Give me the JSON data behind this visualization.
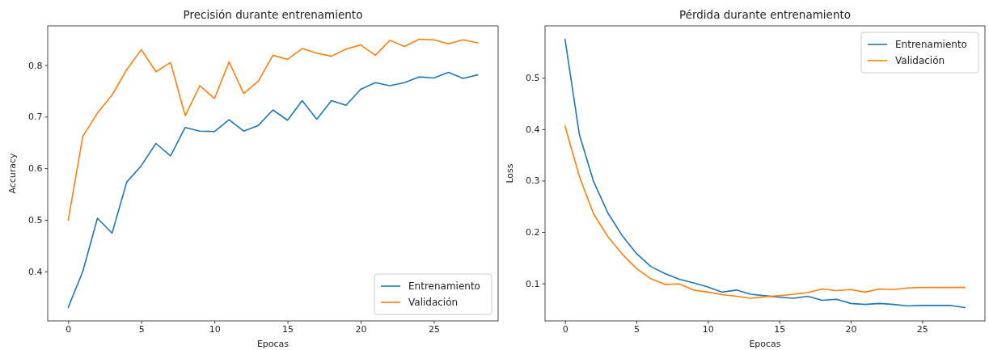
{
  "chart_data": [
    {
      "type": "line",
      "title": "Precisión durante entrenamiento",
      "xlabel": "Epocas",
      "ylabel": "Accuracy",
      "x": [
        0,
        1,
        2,
        3,
        4,
        5,
        6,
        7,
        8,
        9,
        10,
        11,
        12,
        13,
        14,
        15,
        16,
        17,
        18,
        19,
        20,
        21,
        22,
        23,
        24,
        25,
        26,
        27,
        28
      ],
      "xlim": [
        -1.4,
        29.4
      ],
      "xticks": [
        0,
        5,
        10,
        15,
        20,
        25
      ],
      "ylim": [
        0.304,
        0.876
      ],
      "yticks": [
        0.4,
        0.5,
        0.6,
        0.7,
        0.8
      ],
      "legend": "bottom right",
      "grid": false,
      "series": [
        {
          "name": "Entrenamiento",
          "color": "#1f77b4",
          "values": [
            0.33,
            0.4,
            0.503,
            0.474,
            0.573,
            0.605,
            0.648,
            0.624,
            0.679,
            0.672,
            0.671,
            0.694,
            0.672,
            0.683,
            0.713,
            0.693,
            0.731,
            0.695,
            0.731,
            0.722,
            0.753,
            0.766,
            0.76,
            0.766,
            0.777,
            0.775,
            0.786,
            0.774,
            0.781
          ]
        },
        {
          "name": "Validación",
          "color": "#ff7f0e",
          "values": [
            0.499,
            0.662,
            0.707,
            0.742,
            0.791,
            0.83,
            0.787,
            0.805,
            0.702,
            0.76,
            0.735,
            0.806,
            0.745,
            0.769,
            0.819,
            0.811,
            0.832,
            0.823,
            0.817,
            0.831,
            0.839,
            0.819,
            0.848,
            0.836,
            0.85,
            0.849,
            0.841,
            0.849,
            0.843
          ]
        }
      ]
    },
    {
      "type": "line",
      "title": "Pérdida durante entrenamiento",
      "xlabel": "Epocas",
      "ylabel": "Loss",
      "x": [
        0,
        1,
        2,
        3,
        4,
        5,
        6,
        7,
        8,
        9,
        10,
        11,
        12,
        13,
        14,
        15,
        16,
        17,
        18,
        19,
        20,
        21,
        22,
        23,
        24,
        25,
        26,
        27,
        28
      ],
      "xlim": [
        -1.4,
        29.4
      ],
      "xticks": [
        0,
        5,
        10,
        15,
        20,
        25
      ],
      "ylim": [
        0.027,
        0.601
      ],
      "yticks": [
        0.1,
        0.2,
        0.3,
        0.4,
        0.5
      ],
      "legend": "top right",
      "grid": false,
      "series": [
        {
          "name": "Entrenamiento",
          "color": "#1f77b4",
          "values": [
            0.575,
            0.39,
            0.298,
            0.237,
            0.193,
            0.158,
            0.133,
            0.119,
            0.108,
            0.101,
            0.093,
            0.083,
            0.087,
            0.079,
            0.076,
            0.073,
            0.071,
            0.075,
            0.067,
            0.069,
            0.061,
            0.059,
            0.061,
            0.059,
            0.056,
            0.057,
            0.057,
            0.057,
            0.053
          ]
        },
        {
          "name": "Validación",
          "color": "#ff7f0e",
          "values": [
            0.406,
            0.308,
            0.235,
            0.191,
            0.157,
            0.129,
            0.109,
            0.098,
            0.099,
            0.087,
            0.083,
            0.078,
            0.075,
            0.071,
            0.074,
            0.076,
            0.079,
            0.082,
            0.089,
            0.086,
            0.088,
            0.083,
            0.089,
            0.088,
            0.091,
            0.092,
            0.092,
            0.092,
            0.092
          ]
        }
      ]
    }
  ]
}
